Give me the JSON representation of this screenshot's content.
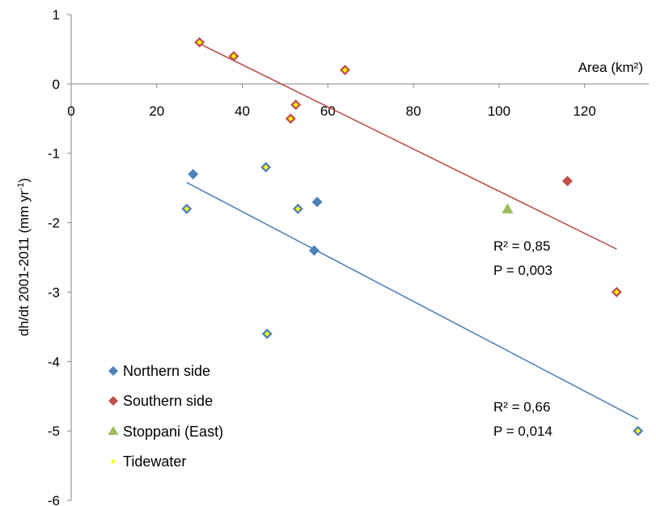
{
  "chart_data": {
    "type": "scatter",
    "title": "",
    "xlabel": "Area (km²)",
    "ylabel": "dh/dt 2001-2011 (mm yr",
    "ylabel_sup": "-1",
    "ylabel_end": ")",
    "xlim": [
      0,
      135
    ],
    "ylim": [
      -6,
      1
    ],
    "x_ticks": [
      "0",
      "20",
      "40",
      "60",
      "80",
      "100",
      "120"
    ],
    "x_tick_values": [
      0,
      20,
      40,
      60,
      80,
      100,
      120
    ],
    "y_ticks": [
      "1",
      "0",
      "-1",
      "-2",
      "-3",
      "-4",
      "-5",
      "-6"
    ],
    "y_tick_values": [
      1,
      0,
      -1,
      -2,
      -3,
      -4,
      -5,
      -6
    ],
    "grid": false,
    "legend_position": "bottom-left",
    "colors": {
      "northern": "#4F81BD",
      "southern": "#C0504D",
      "stoppani": "#9BBB59",
      "tidewater": "#FFFF00"
    },
    "series": [
      {
        "name": "Northern side",
        "marker": "diamond",
        "color": "#4F81BD",
        "points": [
          {
            "x": 28.5,
            "y": -1.3,
            "tidewater": false
          },
          {
            "x": 27,
            "y": -1.8,
            "tidewater": true
          },
          {
            "x": 45.5,
            "y": -1.2,
            "tidewater": true
          },
          {
            "x": 53,
            "y": -1.8,
            "tidewater": true
          },
          {
            "x": 57.5,
            "y": -1.7,
            "tidewater": false
          },
          {
            "x": 56.8,
            "y": -2.4,
            "tidewater": false
          },
          {
            "x": 45.8,
            "y": -3.6,
            "tidewater": true
          },
          {
            "x": 132.5,
            "y": -5.0,
            "tidewater": true
          }
        ]
      },
      {
        "name": "Southern side",
        "marker": "diamond",
        "color": "#C0504D",
        "points": [
          {
            "x": 30,
            "y": 0.6,
            "tidewater": true
          },
          {
            "x": 38,
            "y": 0.4,
            "tidewater": true
          },
          {
            "x": 64,
            "y": 0.2,
            "tidewater": true
          },
          {
            "x": 52.5,
            "y": -0.3,
            "tidewater": true
          },
          {
            "x": 51.3,
            "y": -0.5,
            "tidewater": true
          },
          {
            "x": 116,
            "y": -1.4,
            "tidewater": false
          },
          {
            "x": 127.5,
            "y": -3.0,
            "tidewater": true
          }
        ]
      },
      {
        "name": "Stoppani (East)",
        "marker": "triangle",
        "color": "#9BBB59",
        "points": [
          {
            "x": 102,
            "y": -1.8,
            "tidewater": false
          }
        ]
      },
      {
        "name": "Tidewater",
        "marker": "dot",
        "color": "#FFFF00",
        "points": []
      }
    ],
    "trendlines": [
      {
        "series": "Southern side",
        "color": "#C0504D",
        "x": [
          30,
          127.5
        ],
        "y": [
          0.58,
          -2.38
        ],
        "r2_text": "R² = 0,85",
        "p_text": "P = 0,003"
      },
      {
        "series": "Northern side",
        "color": "#4F81BD",
        "x": [
          27,
          132.5
        ],
        "y": [
          -1.42,
          -4.83
        ],
        "r2_text": "R² = 0,66",
        "p_text": "P = 0,014"
      }
    ]
  }
}
